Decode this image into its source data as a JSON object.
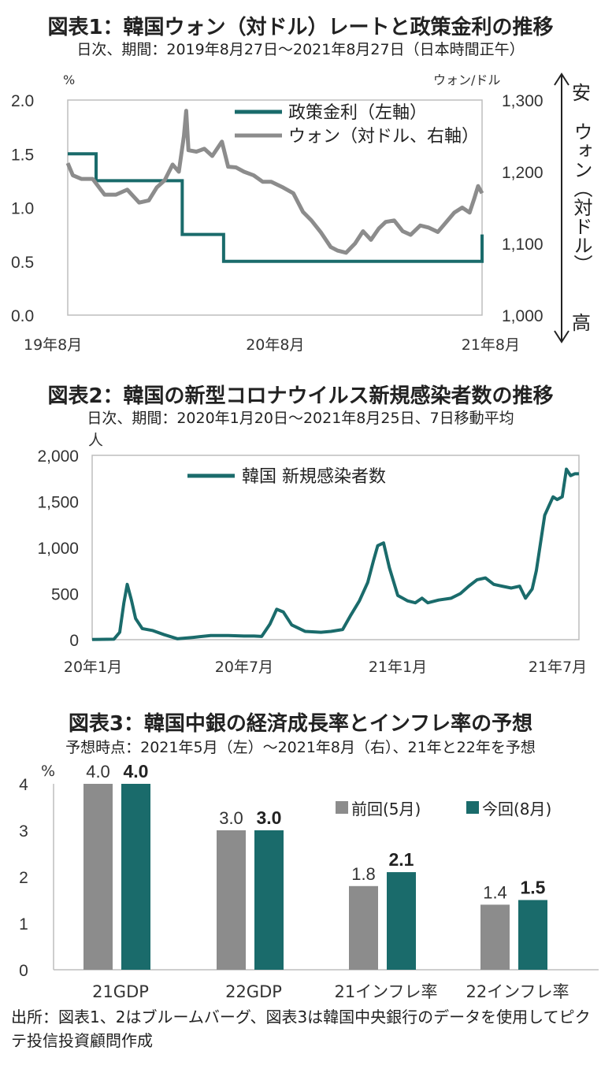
{
  "chart_data": [
    {
      "type": "line",
      "title": "図表1：韓国ウォン（対ドル）レートと政策金利の推移",
      "subtitle": "日次、期間：2019年8月27日～2021年8月27日（日本時間正午）",
      "y_left_unit": "%",
      "y_right_unit": "ウォン/ドル",
      "y_left_ticks": [
        "2.0",
        "1.5",
        "1.0",
        "0.5",
        "0.0"
      ],
      "y_right_ticks": [
        "1,300",
        "1,200",
        "1,100",
        "1,000"
      ],
      "x_ticks": [
        "19年8月",
        "20年8月",
        "21年8月"
      ],
      "ylim_left": [
        0,
        2
      ],
      "ylim_right": [
        1000,
        1300
      ],
      "side_top": "安",
      "side_middle": "ウォン（対ドル）",
      "side_bottom": "高",
      "colors": {
        "rate": "#1a6b6b",
        "won": "#8c8c8c"
      },
      "series": [
        {
          "name": "政策金利（左軸）",
          "axis": "left",
          "x": [
            "2019-08-27",
            "2019-10-16",
            "2020-03-16",
            "2020-05-28",
            "2021-08-26",
            "2021-08-27"
          ],
          "values": [
            1.5,
            1.25,
            0.75,
            0.5,
            0.5,
            0.75
          ]
        },
        {
          "name": "ウォン（対ドル、右軸）",
          "axis": "right",
          "x": [
            "2019-08-27",
            "2019-09-05",
            "2019-09-20",
            "2019-10-10",
            "2019-10-31",
            "2019-11-20",
            "2019-12-10",
            "2019-12-31",
            "2020-01-17",
            "2020-01-31",
            "2020-02-14",
            "2020-02-28",
            "2020-03-10",
            "2020-03-19",
            "2020-03-23",
            "2020-03-27",
            "2020-04-10",
            "2020-04-24",
            "2020-05-08",
            "2020-05-25",
            "2020-06-05",
            "2020-06-19",
            "2020-07-03",
            "2020-07-20",
            "2020-08-05",
            "2020-08-20",
            "2020-09-10",
            "2020-09-28",
            "2020-10-15",
            "2020-10-30",
            "2020-11-16",
            "2020-12-03",
            "2020-12-15",
            "2020-12-30",
            "2021-01-15",
            "2021-01-29",
            "2021-02-12",
            "2021-02-26",
            "2021-03-10",
            "2021-03-25",
            "2021-04-09",
            "2021-04-23",
            "2021-05-10",
            "2021-05-25",
            "2021-06-10",
            "2021-06-25",
            "2021-07-09",
            "2021-07-23",
            "2021-08-05",
            "2021-08-13",
            "2021-08-20",
            "2021-08-27"
          ],
          "values": [
            1212,
            1195,
            1190,
            1190,
            1168,
            1168,
            1175,
            1157,
            1160,
            1178,
            1188,
            1210,
            1200,
            1250,
            1285,
            1230,
            1228,
            1232,
            1222,
            1242,
            1207,
            1206,
            1200,
            1195,
            1186,
            1186,
            1178,
            1170,
            1144,
            1132,
            1115,
            1095,
            1090,
            1087,
            1100,
            1117,
            1105,
            1121,
            1130,
            1132,
            1117,
            1112,
            1125,
            1122,
            1116,
            1130,
            1143,
            1150,
            1143,
            1162,
            1180,
            1170
          ]
        }
      ]
    },
    {
      "type": "line",
      "title": "図表2：韓国の新型コロナウイルス新規感染者数の推移",
      "subtitle": "日次、期間：2020年1月20日～2021年8月25日、7日移動平均",
      "y_unit": "人",
      "y_ticks": [
        "2,000",
        "1,500",
        "1,000",
        "500",
        "0"
      ],
      "x_ticks": [
        "20年1月",
        "20年7月",
        "21年1月",
        "21年7月"
      ],
      "ylim": [
        0,
        2000
      ],
      "colors": {
        "cases": "#1a6b6b"
      },
      "series": [
        {
          "name": "韓国 新規感染者数",
          "x": [
            "2020-01-20",
            "2020-02-15",
            "2020-02-22",
            "2020-02-27",
            "2020-03-02",
            "2020-03-07",
            "2020-03-12",
            "2020-03-20",
            "2020-04-01",
            "2020-04-15",
            "2020-05-01",
            "2020-05-20",
            "2020-06-10",
            "2020-07-01",
            "2020-07-20",
            "2020-08-01",
            "2020-08-10",
            "2020-08-20",
            "2020-08-28",
            "2020-09-05",
            "2020-09-15",
            "2020-10-01",
            "2020-10-20",
            "2020-11-01",
            "2020-11-15",
            "2020-11-25",
            "2020-12-05",
            "2020-12-15",
            "2020-12-22",
            "2020-12-27",
            "2021-01-03",
            "2021-01-10",
            "2021-01-20",
            "2021-02-01",
            "2021-02-10",
            "2021-02-18",
            "2021-02-25",
            "2021-03-10",
            "2021-03-25",
            "2021-04-05",
            "2021-04-15",
            "2021-04-25",
            "2021-05-05",
            "2021-05-15",
            "2021-05-25",
            "2021-06-05",
            "2021-06-15",
            "2021-06-22",
            "2021-06-30",
            "2021-07-05",
            "2021-07-10",
            "2021-07-15",
            "2021-07-20",
            "2021-07-25",
            "2021-07-30",
            "2021-08-05",
            "2021-08-10",
            "2021-08-15",
            "2021-08-20",
            "2021-08-25"
          ],
          "values": [
            2,
            5,
            80,
            400,
            600,
            430,
            230,
            120,
            100,
            55,
            10,
            25,
            45,
            45,
            40,
            40,
            35,
            170,
            330,
            300,
            160,
            90,
            80,
            90,
            110,
            270,
            420,
            620,
            860,
            1020,
            1050,
            780,
            480,
            420,
            400,
            450,
            400,
            430,
            450,
            500,
            580,
            650,
            670,
            600,
            580,
            560,
            580,
            450,
            550,
            750,
            1050,
            1350,
            1450,
            1550,
            1520,
            1550,
            1850,
            1780,
            1800,
            1800
          ]
        }
      ]
    },
    {
      "type": "bar",
      "title": "図表3：韓国中銀の経済成長率とインフレ率の予想",
      "subtitle": "予想時点：2021年5月（左）～2021年8月（右）、21年と22年を予想",
      "y_unit": "%",
      "y_ticks": [
        "4",
        "3",
        "2",
        "1",
        "0"
      ],
      "ylim": [
        0,
        4
      ],
      "categories": [
        "21GDP",
        "22GDP",
        "21インフレ率",
        "22インフレ率"
      ],
      "colors": {
        "prev": "#8c8c8c",
        "now": "#1a6b6b"
      },
      "series": [
        {
          "name": "前回(5月)",
          "values": [
            4.0,
            3.0,
            1.8,
            1.4
          ],
          "labels": [
            "4.0",
            "3.0",
            "1.8",
            "1.4"
          ]
        },
        {
          "name": "今回(8月)",
          "values": [
            4.0,
            3.0,
            2.1,
            1.5
          ],
          "labels": [
            "4.0",
            "3.0",
            "2.1",
            "1.5"
          ]
        }
      ]
    }
  ],
  "source": "出所：図表1、2はブルームバーグ、図表3は韓国中央銀行のデータを使用してピクテ投信投資顧問作成"
}
